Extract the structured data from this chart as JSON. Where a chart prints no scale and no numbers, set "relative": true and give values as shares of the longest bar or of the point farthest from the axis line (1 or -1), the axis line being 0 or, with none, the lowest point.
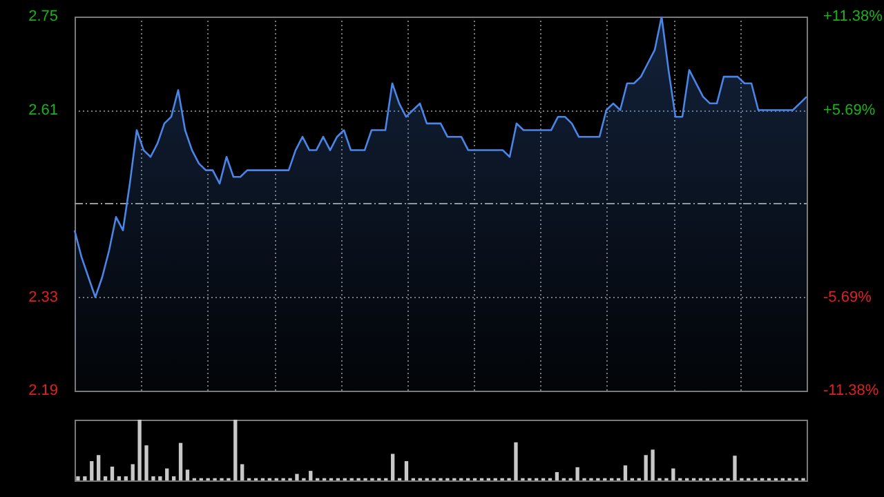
{
  "chart_data": [
    {
      "type": "area",
      "categories": [
        null,
        null,
        null,
        null,
        null,
        null,
        null,
        null,
        null,
        null,
        null,
        null,
        null,
        null,
        null,
        null,
        null,
        null,
        null,
        null,
        null,
        null,
        null,
        null,
        null,
        null,
        null,
        null,
        null,
        null,
        null,
        null,
        null,
        null,
        null,
        null,
        null,
        null,
        null,
        null,
        null,
        null,
        null,
        null,
        null,
        null,
        null,
        null,
        null,
        null,
        null,
        null,
        null,
        null,
        null,
        null,
        null,
        null,
        null,
        null,
        null,
        null,
        null,
        null,
        null,
        null,
        null,
        null,
        null,
        null,
        null,
        null,
        null,
        null,
        null,
        null,
        null,
        null,
        null,
        null,
        null,
        null,
        null,
        null,
        null,
        null,
        null,
        null,
        null,
        null,
        null,
        null,
        null,
        null,
        null,
        null,
        null,
        null,
        null,
        null,
        null,
        null,
        null,
        null,
        null,
        null,
        null
      ],
      "series": [
        {
          "color": "#4a86e8",
          "values": [
            2.43,
            2.39,
            2.36,
            2.33,
            2.36,
            2.4,
            2.45,
            2.43,
            2.5,
            2.58,
            2.55,
            2.54,
            2.56,
            2.59,
            2.6,
            2.64,
            2.58,
            2.55,
            2.53,
            2.52,
            2.52,
            2.5,
            2.54,
            2.51,
            2.51,
            2.52,
            2.52,
            2.52,
            2.52,
            2.52,
            2.52,
            2.52,
            2.55,
            2.57,
            2.55,
            2.55,
            2.57,
            2.55,
            2.57,
            2.58,
            2.55,
            2.55,
            2.55,
            2.58,
            2.58,
            2.58,
            2.65,
            2.62,
            2.6,
            2.61,
            2.62,
            2.59,
            2.59,
            2.59,
            2.57,
            2.57,
            2.57,
            2.55,
            2.55,
            2.55,
            2.55,
            2.55,
            2.55,
            2.54,
            2.59,
            2.58,
            2.58,
            2.58,
            2.58,
            2.58,
            2.6,
            2.6,
            2.59,
            2.57,
            2.57,
            2.57,
            2.57,
            2.61,
            2.62,
            2.61,
            2.65,
            2.65,
            2.66,
            2.68,
            2.7,
            2.75,
            2.67,
            2.6,
            2.6,
            2.67,
            2.65,
            2.63,
            2.62,
            2.62,
            2.66,
            2.66,
            2.66,
            2.65,
            2.65,
            2.61,
            2.61,
            2.61,
            2.61,
            2.61,
            2.61,
            2.62,
            2.63
          ]
        }
      ],
      "ylim": [
        2.19,
        2.75
      ],
      "yticks": [
        2.19,
        2.33,
        2.61,
        2.75
      ],
      "y2lim": [
        -11.38,
        11.38
      ],
      "y2ticks": [
        {
          "value": -11.38,
          "label": "-11.38%"
        },
        {
          "value": -5.69,
          "label": "-5.69%"
        },
        {
          "value": 5.69,
          "label": "+5.69%"
        },
        {
          "value": 11.38,
          "label": "+11.38%"
        }
      ],
      "ref_lines": [
        {
          "axis": "y",
          "value": 2.47,
          "line_style": "dashed",
          "color": "#9a9a9a"
        }
      ],
      "grid": true,
      "legend": false,
      "tick_labels": "y"
    },
    {
      "type": "bar",
      "relative": true,
      "categories": [
        null,
        null,
        null,
        null,
        null,
        null,
        null,
        null,
        null,
        null,
        null,
        null,
        null,
        null,
        null,
        null,
        null,
        null,
        null,
        null,
        null,
        null,
        null,
        null,
        null,
        null,
        null,
        null,
        null,
        null,
        null,
        null,
        null,
        null,
        null,
        null,
        null,
        null,
        null,
        null,
        null,
        null,
        null,
        null,
        null,
        null,
        null,
        null,
        null,
        null,
        null,
        null,
        null,
        null,
        null,
        null,
        null,
        null,
        null,
        null,
        null,
        null,
        null,
        null,
        null,
        null,
        null,
        null,
        null,
        null,
        null,
        null,
        null,
        null,
        null,
        null,
        null,
        null,
        null,
        null,
        null,
        null,
        null,
        null,
        null,
        null,
        null,
        null,
        null,
        null,
        null,
        null,
        null,
        null,
        null,
        null,
        null,
        null,
        null,
        null,
        null,
        null,
        null,
        null,
        null,
        null,
        null
      ],
      "values": [
        0.06,
        0.06,
        0.31,
        0.41,
        0.06,
        0.22,
        0.06,
        0.06,
        0.26,
        1,
        0.57,
        0.06,
        0.06,
        0.19,
        0.06,
        0.61,
        0.17,
        0.03,
        0.03,
        0.03,
        0.03,
        0.03,
        0.03,
        1,
        0.26,
        0.03,
        0.03,
        0.03,
        0.03,
        0.03,
        0.03,
        0.03,
        0.1,
        0.03,
        0.15,
        0.03,
        0.03,
        0.03,
        0.03,
        0.03,
        0.03,
        0.03,
        0.03,
        0.03,
        0.03,
        0.03,
        0.43,
        0.03,
        0.31,
        0.03,
        0.03,
        0.03,
        0.03,
        0.03,
        0.03,
        0.03,
        0.03,
        0.03,
        0.03,
        0.03,
        0.03,
        0.03,
        0.03,
        0.03,
        0.62,
        0.03,
        0.03,
        0.03,
        0.03,
        0.03,
        0.13,
        0.03,
        0.03,
        0.21,
        0.03,
        0.03,
        0.03,
        0.03,
        0.03,
        0.03,
        0.24,
        0.03,
        0.03,
        0.41,
        0.5,
        0.03,
        0.03,
        0.19,
        0.03,
        0.03,
        0.03,
        0.03,
        0.03,
        0.03,
        0.03,
        0.03,
        0.4,
        0.03,
        0.03,
        0.03,
        0.03,
        0.03,
        0.03,
        0.03,
        0.03,
        0.03,
        0.03
      ],
      "color": "#c8c8c8",
      "legend": false,
      "tick_labels": false
    }
  ]
}
